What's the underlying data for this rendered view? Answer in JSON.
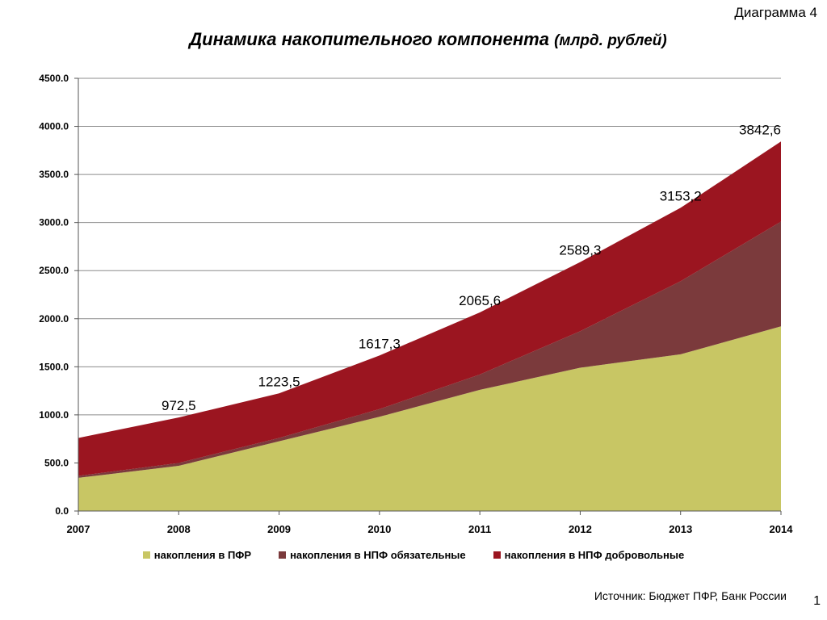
{
  "header": {
    "diagram_label": "Диаграмма 4",
    "title_main": "Динамика накопительного компонента",
    "title_unit": "(млрд. рублей)"
  },
  "chart_data": {
    "type": "area",
    "stacked": true,
    "categories": [
      "2007",
      "2008",
      "2009",
      "2010",
      "2011",
      "2012",
      "2013",
      "2014"
    ],
    "ylim": [
      0,
      4500
    ],
    "yticks": [
      "0.0",
      "500.0",
      "1000.0",
      "1500.0",
      "2000.0",
      "2500.0",
      "3000.0",
      "3500.0",
      "4000.0",
      "4500.0"
    ],
    "grid": true,
    "legend_position": "bottom",
    "series": [
      {
        "name": "накопления в ПФР",
        "color": "#c8c664",
        "values": [
          345,
          470,
          725,
          980,
          1260,
          1490,
          1630,
          1920
        ]
      },
      {
        "name": "накопления в НПФ обязательные",
        "color": "#7b3a3c",
        "values": [
          20,
          30,
          35,
          80,
          160,
          380,
          760,
          1090
        ]
      },
      {
        "name": "накопления в НПФ  добровольные",
        "color": "#9b1520",
        "values": [
          395,
          472.5,
          463.5,
          557.3,
          645.6,
          719.3,
          763.2,
          832.6
        ]
      }
    ],
    "totals": [
      760,
      972.5,
      1223.5,
      1617.3,
      2065.6,
      2589.3,
      3153.2,
      3842.6
    ],
    "total_labels": [
      "",
      "972,5",
      "1223,5",
      "1617,3",
      "2065,6",
      "2589,3",
      "3153,2",
      "3842,6"
    ]
  },
  "footer": {
    "source": "Источник: Бюджет ПФР, Банк России",
    "page_number": "1"
  }
}
